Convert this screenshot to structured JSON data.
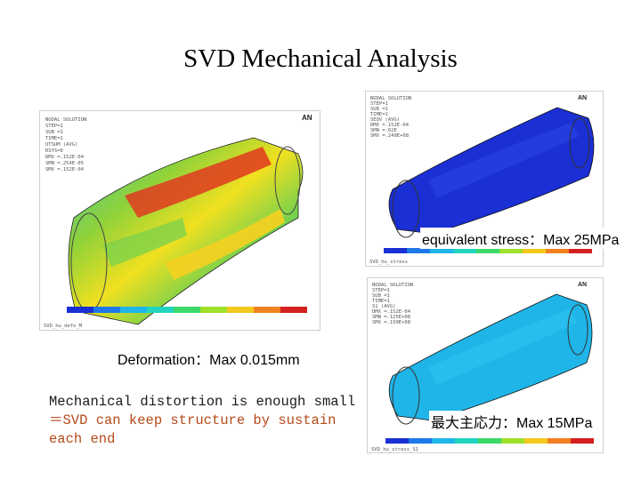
{
  "slide_title": "SVD Mechanical Analysis",
  "panels": {
    "deformation": {
      "caption": "Deformation：Max  0.015mm",
      "header_lines": [
        "NODAL SOLUTION",
        "STEP=1",
        "SUB =1",
        "TIME=1",
        "UTSUM    (AVG)",
        "RSYS=0",
        "DMX =.152E-04",
        "SMN =.254E-05",
        "SMX =.152E-04"
      ],
      "legend_bottom": "SVD_hu_defo_M"
    },
    "stress": {
      "caption": "equivalent stress：Max 25MPa",
      "header_lines": [
        "NODAL SOLUTION",
        "STEP=1",
        "SUB =1",
        "TIME=1",
        "SEQV     (AVG)",
        "DMX =.152E-04",
        "SMN =.62E",
        "SMX =.249E+08"
      ],
      "legend_bottom": "SVD_hu_stress"
    },
    "principal": {
      "caption": "最大主応力：Max 15MPa",
      "header_lines": [
        "NODAL SOLUTION",
        "STEP=1",
        "SUB =1",
        "TIME=1",
        "S1       (AVG)",
        "DMX =.152E-04",
        "SMN =.125E+08",
        "SMX =.150E+08"
      ],
      "legend_bottom": "SVD_hu_stress_S1"
    }
  },
  "note": {
    "line1": "Mechanical distortion is enough small",
    "line2": "＝SVD can keep structure by sustain",
    "line3": "each end"
  },
  "colors": {
    "contour_blue": "#1a2fd4",
    "contour_cyan": "#1fb5e8",
    "contour_green": "#7ed321",
    "contour_yellow": "#f2c91d",
    "contour_red": "#d42020"
  }
}
